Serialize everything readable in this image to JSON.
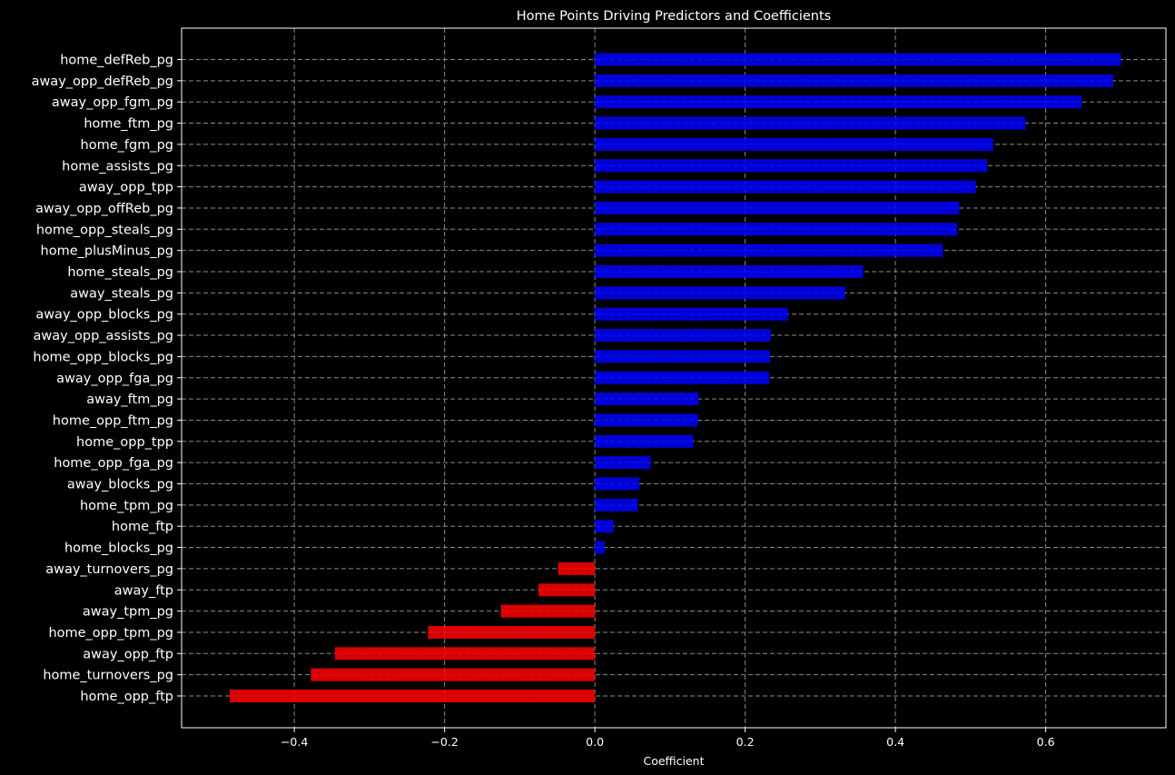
{
  "chart_data": {
    "type": "bar",
    "orientation": "horizontal",
    "title": "Home Points Driving Predictors and Coefficients",
    "xlabel": "Coefficient",
    "ylabel": "",
    "xlim": [
      -0.55,
      0.76
    ],
    "xticks": [
      -0.4,
      -0.2,
      0.0,
      0.2,
      0.4,
      0.6
    ],
    "xtick_labels": [
      "−0.4",
      "−0.2",
      "0.0",
      "0.2",
      "0.4",
      "0.6"
    ],
    "grid": true,
    "categories": [
      "home_defReb_pg",
      "away_opp_defReb_pg",
      "away_opp_fgm_pg",
      "home_ftm_pg",
      "home_fgm_pg",
      "home_assists_pg",
      "away_opp_tpp",
      "away_opp_offReb_pg",
      "home_opp_steals_pg",
      "home_plusMinus_pg",
      "home_steals_pg",
      "away_steals_pg",
      "away_opp_blocks_pg",
      "away_opp_assists_pg",
      "home_opp_blocks_pg",
      "away_opp_fga_pg",
      "away_ftm_pg",
      "home_opp_ftm_pg",
      "home_opp_tpp",
      "home_opp_fga_pg",
      "away_blocks_pg",
      "home_tpm_pg",
      "home_ftp",
      "home_blocks_pg",
      "away_turnovers_pg",
      "away_ftp",
      "away_tpm_pg",
      "home_opp_tpm_pg",
      "away_opp_ftp",
      "home_turnovers_pg",
      "home_opp_ftp"
    ],
    "values": [
      0.7,
      0.69,
      0.648,
      0.573,
      0.53,
      0.522,
      0.507,
      0.485,
      0.482,
      0.463,
      0.357,
      0.333,
      0.257,
      0.234,
      0.233,
      0.232,
      0.138,
      0.137,
      0.131,
      0.074,
      0.059,
      0.057,
      0.025,
      0.013,
      -0.049,
      -0.075,
      -0.125,
      -0.222,
      -0.346,
      -0.378,
      -0.486
    ],
    "colors": {
      "positive": "#0000ff",
      "negative": "#ff0000",
      "background": "#000000",
      "text": "#ffffff",
      "grid": "#8a8a8a"
    }
  }
}
